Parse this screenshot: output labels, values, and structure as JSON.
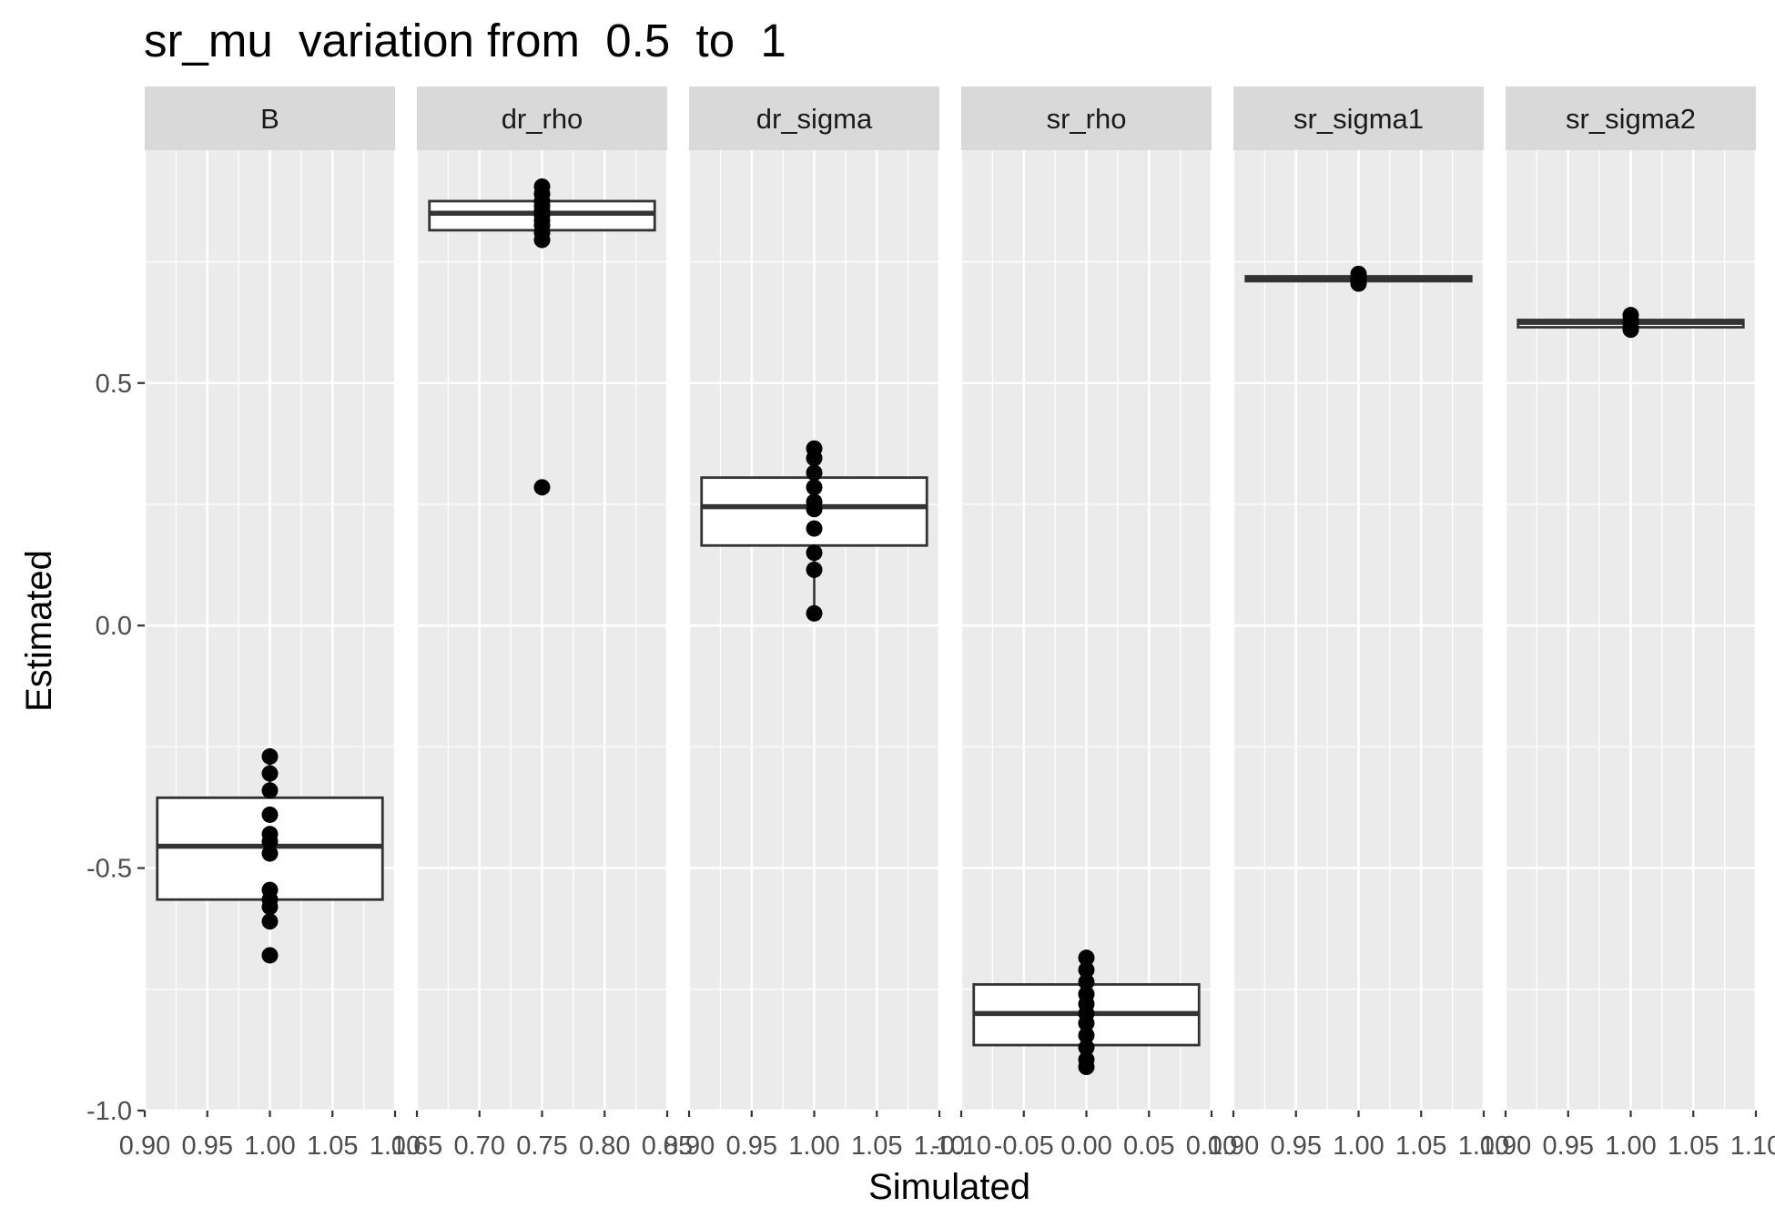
{
  "chart_data": {
    "type": "boxplot",
    "title": "sr_mu  variation from  0.5  to  1",
    "xlabel": "Simulated",
    "ylabel": "Estimated",
    "ylim": [
      -1.0,
      0.98
    ],
    "y_ticks": [
      -1.0,
      -0.5,
      0.0,
      0.5
    ],
    "y_tick_labels": [
      "-1.0",
      "-0.5",
      "0.0",
      "0.5"
    ],
    "grid": true,
    "legend": "none",
    "colors": {
      "panel_bg": "#ebebeb",
      "strip_bg": "#d9d9d9",
      "grid": "#ffffff",
      "box_fill": "#ffffff",
      "box_line": "#333333",
      "point": "#000000",
      "tick": "#333333"
    },
    "facets": [
      {
        "name": "B",
        "xlim": [
          0.9,
          1.1
        ],
        "x_ticks": [
          0.9,
          0.95,
          1.0,
          1.05,
          1.1
        ],
        "x_tick_labels": [
          "0.90",
          "0.95",
          "1.00",
          "1.05",
          "1.10"
        ],
        "x": 1.0,
        "box": {
          "lower": -0.57,
          "q1": -0.565,
          "median": -0.455,
          "q3": -0.355,
          "upper": -0.27
        },
        "points": [
          -0.27,
          -0.305,
          -0.34,
          -0.39,
          -0.43,
          -0.445,
          -0.47,
          -0.545,
          -0.565,
          -0.58,
          -0.61,
          -0.68
        ]
      },
      {
        "name": "dr_rho",
        "xlim": [
          0.65,
          0.85
        ],
        "x_ticks": [
          0.65,
          0.7,
          0.75,
          0.8,
          0.85
        ],
        "x_tick_labels": [
          "0.65",
          "0.70",
          "0.75",
          "0.80",
          "0.85"
        ],
        "x": 0.75,
        "box": {
          "lower": 0.81,
          "q1": 0.815,
          "median": 0.85,
          "q3": 0.875,
          "upper": 0.905
        },
        "points": [
          0.905,
          0.89,
          0.875,
          0.865,
          0.855,
          0.845,
          0.835,
          0.825,
          0.81,
          0.795,
          0.285
        ]
      },
      {
        "name": "dr_sigma",
        "xlim": [
          0.9,
          1.1
        ],
        "x_ticks": [
          0.9,
          0.95,
          1.0,
          1.05,
          1.1
        ],
        "x_tick_labels": [
          "0.90",
          "0.95",
          "1.00",
          "1.05",
          "1.10"
        ],
        "x": 1.0,
        "box": {
          "lower": 0.025,
          "q1": 0.165,
          "median": 0.245,
          "q3": 0.305,
          "upper": 0.365
        },
        "points": [
          0.365,
          0.345,
          0.315,
          0.285,
          0.255,
          0.24,
          0.2,
          0.15,
          0.115,
          0.025
        ]
      },
      {
        "name": "sr_rho",
        "xlim": [
          -0.1,
          0.1
        ],
        "x_ticks": [
          -0.1,
          -0.05,
          0.0,
          0.05,
          0.1
        ],
        "x_tick_labels": [
          "-0.10",
          "-0.05",
          "0.00",
          "0.05",
          "0.10"
        ],
        "x": 0.0,
        "box": {
          "lower": -0.91,
          "q1": -0.865,
          "median": -0.8,
          "q3": -0.74,
          "upper": -0.685
        },
        "points": [
          -0.685,
          -0.71,
          -0.735,
          -0.76,
          -0.78,
          -0.8,
          -0.82,
          -0.845,
          -0.87,
          -0.895,
          -0.91
        ]
      },
      {
        "name": "sr_sigma1",
        "xlim": [
          0.9,
          1.1
        ],
        "x_ticks": [
          0.9,
          0.95,
          1.0,
          1.05,
          1.1
        ],
        "x_tick_labels": [
          "0.90",
          "0.95",
          "1.00",
          "1.05",
          "1.10"
        ],
        "x": 1.0,
        "box": {
          "lower": 0.71,
          "q1": 0.71,
          "median": 0.715,
          "q3": 0.72,
          "upper": 0.725
        },
        "points": [
          0.725,
          0.72,
          0.715,
          0.71,
          0.705
        ]
      },
      {
        "name": "sr_sigma2",
        "xlim": [
          0.9,
          1.1
        ],
        "x_ticks": [
          0.9,
          0.95,
          1.0,
          1.05,
          1.1
        ],
        "x_tick_labels": [
          "0.90",
          "0.95",
          "1.00",
          "1.05",
          "1.10"
        ],
        "x": 1.0,
        "box": {
          "lower": 0.61,
          "q1": 0.615,
          "median": 0.625,
          "q3": 0.63,
          "upper": 0.64
        },
        "points": [
          0.64,
          0.63,
          0.625,
          0.615,
          0.61
        ]
      }
    ]
  }
}
